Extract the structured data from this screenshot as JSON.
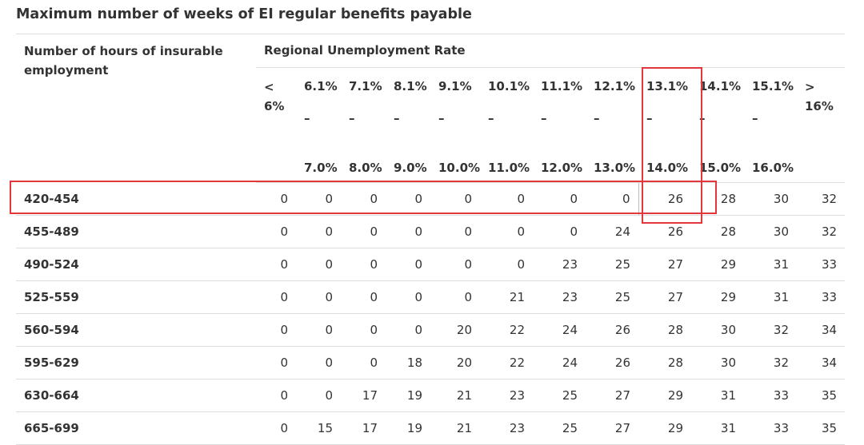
{
  "caption": "Maximum number of weeks of EI regular benefits payable",
  "row_header": "Number of hours of insurable employment",
  "group_header": "Regional Unemployment Rate",
  "columns": [
    {
      "lo": "<",
      "hi": "6%"
    },
    {
      "lo": "6.1%",
      "dash": "–",
      "hi": "7.0%"
    },
    {
      "lo": "7.1%",
      "dash": "–",
      "hi": "8.0%"
    },
    {
      "lo": "8.1%",
      "dash": "–",
      "hi": "9.0%"
    },
    {
      "lo": "9.1%",
      "dash": "–",
      "hi": "10.0%"
    },
    {
      "lo": "10.1%",
      "dash": "–",
      "hi": "11.0%"
    },
    {
      "lo": "11.1%",
      "dash": "–",
      "hi": "12.0%"
    },
    {
      "lo": "12.1%",
      "dash": "–",
      "hi": "13.0%"
    },
    {
      "lo": "13.1%",
      "dash": "–",
      "hi": "14.0%"
    },
    {
      "lo": "14.1%",
      "dash": "–",
      "hi": "15.0%"
    },
    {
      "lo": "15.1%",
      "dash": "–",
      "hi": "16.0%"
    },
    {
      "lo": ">",
      "hi": "16%"
    }
  ],
  "rows": [
    {
      "hours": "420-454",
      "values": [
        "0",
        "0",
        "0",
        "0",
        "0",
        "0",
        "0",
        "0",
        "26",
        "28",
        "30",
        "32"
      ]
    },
    {
      "hours": "455-489",
      "values": [
        "0",
        "0",
        "0",
        "0",
        "0",
        "0",
        "0",
        "24",
        "26",
        "28",
        "30",
        "32"
      ]
    },
    {
      "hours": "490-524",
      "values": [
        "0",
        "0",
        "0",
        "0",
        "0",
        "0",
        "23",
        "25",
        "27",
        "29",
        "31",
        "33"
      ]
    },
    {
      "hours": "525-559",
      "values": [
        "0",
        "0",
        "0",
        "0",
        "0",
        "21",
        "23",
        "25",
        "27",
        "29",
        "31",
        "33"
      ]
    },
    {
      "hours": "560-594",
      "values": [
        "0",
        "0",
        "0",
        "0",
        "20",
        "22",
        "24",
        "26",
        "28",
        "30",
        "32",
        "34"
      ]
    },
    {
      "hours": "595-629",
      "values": [
        "0",
        "0",
        "0",
        "18",
        "20",
        "22",
        "24",
        "26",
        "28",
        "30",
        "32",
        "34"
      ]
    },
    {
      "hours": "630-664",
      "values": [
        "0",
        "0",
        "17",
        "19",
        "21",
        "23",
        "25",
        "27",
        "29",
        "31",
        "33",
        "35"
      ]
    },
    {
      "hours": "665-699",
      "values": [
        "0",
        "15",
        "17",
        "19",
        "21",
        "23",
        "25",
        "27",
        "29",
        "31",
        "33",
        "35"
      ]
    }
  ],
  "highlight_color": "#e3373c"
}
